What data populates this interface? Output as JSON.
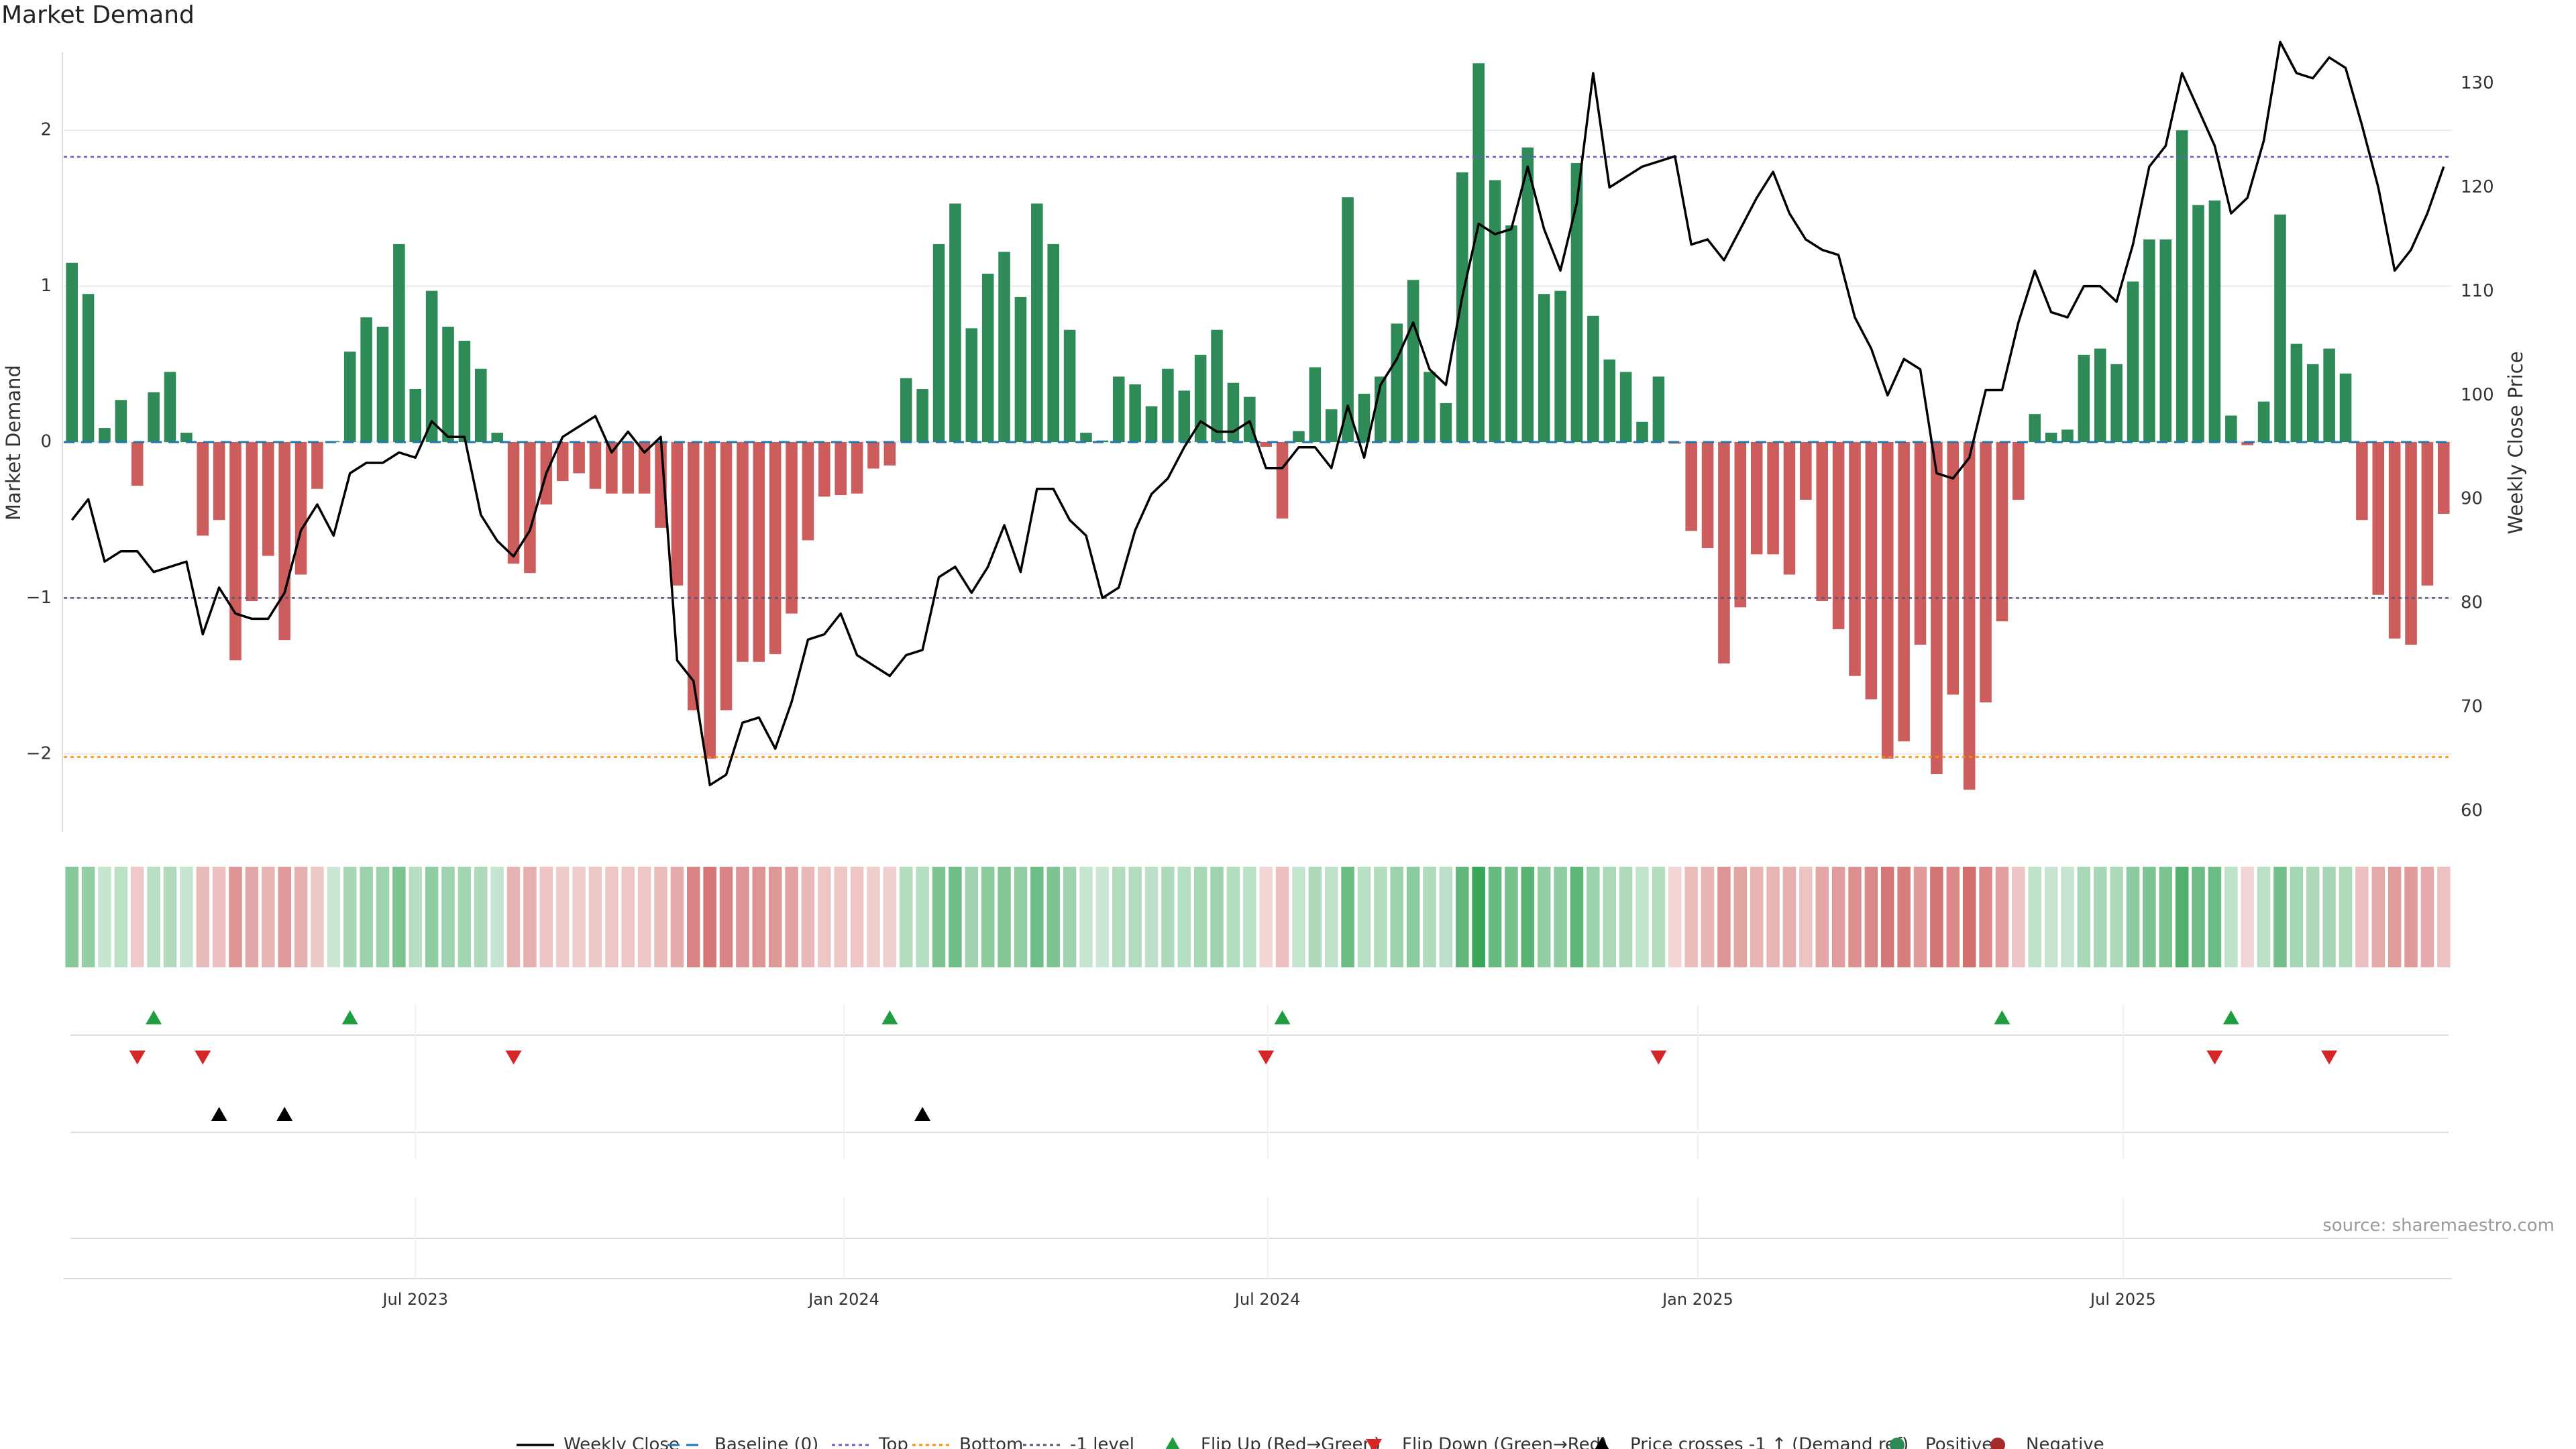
{
  "title": "Market Demand",
  "source": "source: sharemaestro.com",
  "colors": {
    "positive": "#2e8b57",
    "negative": "#cd5c5c",
    "price_line": "#000000",
    "top_line": "#6a5acd",
    "bottom_line": "#ff8c00",
    "minus1_line": "#555577",
    "baseline": "#1f77b4",
    "flip_up": "#1f9e3f",
    "flip_down": "#d62728",
    "cross_marker": "#000000",
    "grid": "#ebebeb"
  },
  "legend": [
    {
      "label": "Weekly Close",
      "kind": "line",
      "color": "#000000"
    },
    {
      "label": "Baseline (0)",
      "kind": "dash",
      "color": "#1f77b4"
    },
    {
      "label": "Top",
      "kind": "dot",
      "color": "#6a5acd"
    },
    {
      "label": "Bottom",
      "kind": "dot",
      "color": "#ff8c00"
    },
    {
      "label": "-1 level",
      "kind": "dot",
      "color": "#555577"
    },
    {
      "label": "Flip Up (Red→Green)",
      "kind": "tri-up",
      "color": "#1f9e3f"
    },
    {
      "label": "Flip Down (Green→Red)",
      "kind": "tri-down",
      "color": "#d62728"
    },
    {
      "label": "Price crosses -1 ↑ (Demand ref)",
      "kind": "tri-up",
      "color": "#000000"
    },
    {
      "label": "Positive",
      "kind": "dot-fill",
      "color": "#2e8b57"
    },
    {
      "label": "Negative",
      "kind": "dot-fill",
      "color": "#a52a2a"
    }
  ],
  "chart_data": {
    "type": "bar",
    "title": "Market Demand",
    "ylabel": "Market Demand",
    "ylabel_right": "Weekly Close Price",
    "ylim": [
      -2.5,
      2.5
    ],
    "ylim_right": [
      58,
      133
    ],
    "yticks": [
      2,
      1,
      0,
      -1,
      -2
    ],
    "yticks_right": [
      130,
      120,
      110,
      100,
      90,
      80,
      70,
      60
    ],
    "x_tick_labels": [
      "Jul 2023",
      "Jan 2024",
      "Jul 2024",
      "Jan 2025",
      "Jul 2025"
    ],
    "x_tick_index": [
      21.5,
      47.7,
      73.6,
      99.9,
      125.9
    ],
    "reference_lines": {
      "top": 1.83,
      "bottom": -2.02,
      "minus1": -1.0,
      "baseline": 0
    },
    "series": [
      {
        "name": "Market Demand",
        "values": [
          1.15,
          0.95,
          0.09,
          0.27,
          -0.28,
          0.32,
          0.45,
          0.06,
          -0.6,
          -0.5,
          -1.4,
          -1.02,
          -0.73,
          -1.27,
          -0.85,
          -0.3,
          0.0,
          0.58,
          0.8,
          0.74,
          1.27,
          0.34,
          0.97,
          0.74,
          0.65,
          0.47,
          0.06,
          -0.78,
          -0.84,
          -0.4,
          -0.25,
          -0.2,
          -0.3,
          -0.33,
          -0.33,
          -0.33,
          -0.55,
          -0.92,
          -1.72,
          -2.03,
          -1.72,
          -1.41,
          -1.41,
          -1.36,
          -1.1,
          -0.63,
          -0.35,
          -0.34,
          -0.33,
          -0.17,
          -0.15,
          0.41,
          0.34,
          1.27,
          1.53,
          0.73,
          1.08,
          1.22,
          0.93,
          1.53,
          1.27,
          0.72,
          0.06,
          0.01,
          0.42,
          0.37,
          0.23,
          0.47,
          0.33,
          0.56,
          0.72,
          0.38,
          0.29,
          -0.03,
          -0.49,
          0.07,
          0.48,
          0.21,
          1.57,
          0.31,
          0.42,
          0.76,
          1.04,
          0.45,
          0.25,
          1.73,
          2.43,
          1.68,
          1.39,
          1.89,
          0.95,
          0.97,
          1.79,
          0.81,
          0.53,
          0.45,
          0.13,
          0.42,
          -0.01,
          -0.57,
          -0.68,
          -1.42,
          -1.06,
          -0.72,
          -0.72,
          -0.85,
          -0.37,
          -1.02,
          -1.2,
          -1.5,
          -1.65,
          -2.03,
          -1.92,
          -1.3,
          -2.13,
          -1.62,
          -2.23,
          -1.67,
          -1.15,
          -0.37,
          0.18,
          0.06,
          0.08,
          0.56,
          0.6,
          0.5,
          1.03,
          1.3,
          1.3,
          2.0,
          1.52,
          1.55,
          0.17,
          -0.02,
          0.26,
          1.46,
          0.63,
          0.5,
          0.6,
          0.44,
          -0.5,
          -0.98,
          -1.26,
          -1.3,
          -0.92,
          -0.46
        ]
      },
      {
        "name": "Weekly Close",
        "values": [
          88,
          90,
          84,
          85,
          85,
          83,
          83.5,
          84,
          77,
          81.5,
          79,
          78.5,
          78.5,
          81,
          87,
          89.5,
          86.5,
          92.5,
          93.5,
          93.5,
          94.5,
          94,
          97.5,
          96,
          96,
          88.5,
          86,
          84.5,
          87,
          92.5,
          96,
          97,
          98,
          94.5,
          96.5,
          94.5,
          96,
          74.5,
          72.5,
          62.5,
          63.5,
          68.5,
          69,
          66,
          70.5,
          76.5,
          77,
          79,
          75,
          74,
          73,
          75,
          75.5,
          82.5,
          83.5,
          81,
          83.5,
          87.5,
          83,
          91,
          91,
          88,
          86.5,
          80.5,
          81.5,
          87,
          90.5,
          92,
          95,
          97.5,
          96.5,
          96.5,
          97.5,
          93,
          93,
          95,
          95,
          93,
          99,
          94,
          101,
          103.5,
          107,
          102.5,
          101,
          109.5,
          116.5,
          115.5,
          116,
          122,
          116,
          112,
          118.5,
          131,
          120,
          121,
          122,
          122.5,
          123,
          114.5,
          115,
          113,
          116,
          119,
          121.5,
          117.5,
          115,
          114,
          113.5,
          107.5,
          104.5,
          100,
          103.5,
          102.5,
          92.5,
          92,
          94,
          100.5,
          100.5,
          107,
          112,
          108,
          107.5,
          110.5,
          110.5,
          109,
          114.5,
          122,
          124,
          131,
          127.5,
          124,
          117.5,
          119,
          124.5,
          134,
          131,
          130.5,
          132.5,
          131.5,
          126,
          120,
          112,
          114,
          117.5,
          122
        ]
      }
    ],
    "heatmap_strip": {
      "description": "one cell per week, green shades for positive demand and red shades for negative, intensity scales with magnitude"
    },
    "signal_rows": {
      "flip_up_index": [
        5,
        17,
        50,
        74,
        118,
        132
      ],
      "flip_down_index": [
        4,
        8,
        27,
        73,
        97,
        131,
        138
      ],
      "price_cross_index": [
        9,
        13,
        52
      ]
    }
  }
}
